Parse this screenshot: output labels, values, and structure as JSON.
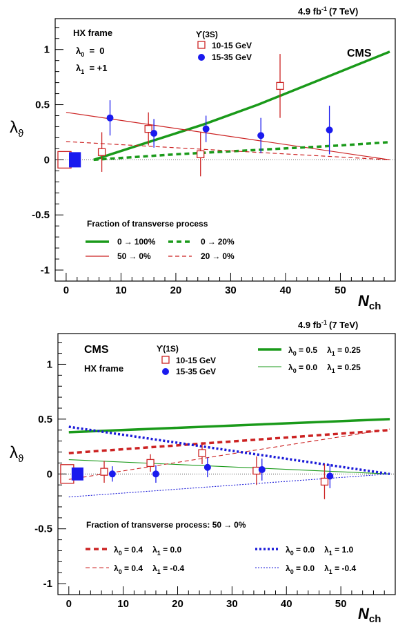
{
  "chart_data": [
    {
      "type": "scatter",
      "header": {
        "lumi": "4.9 fb",
        "lumi_sup": "-1",
        "energy": "(7 TeV)"
      },
      "experiment": "CMS",
      "frame_label": "HX frame",
      "params": [
        {
          "sym": "λ",
          "sub": "0",
          "text": "  =  0"
        },
        {
          "sym": "λ",
          "sub": "1",
          "text": "  = +1"
        }
      ],
      "state_label": "ϒ(3S)",
      "xlabel": "N",
      "xlabel_sub": "ch",
      "ylabel": "λ",
      "ylabel_sub": "ϑ",
      "xlim": [
        -2,
        60
      ],
      "ylim": [
        -1.1,
        1.28
      ],
      "xticks": [
        0,
        10,
        20,
        30,
        40,
        50
      ],
      "yticks": [
        -1,
        -0.5,
        0,
        0.5,
        1
      ],
      "ytick_labels": [
        "-1",
        "-0.5",
        "0",
        "0.5",
        "1"
      ],
      "series": [
        {
          "name": "10-15 GeV",
          "marker": "open-square",
          "color": "#cc2222",
          "x": [
            6.5,
            15,
            24.5,
            39
          ],
          "y": [
            0.07,
            0.28,
            0.05,
            0.67
          ],
          "yerr": [
            0.18,
            0.15,
            0.2,
            0.29
          ],
          "xerr": [
            0,
            0,
            0,
            0
          ]
        },
        {
          "name": "15-35 GeV",
          "marker": "filled-circle",
          "color": "#1a1aee",
          "x": [
            8,
            16,
            25.5,
            35.5,
            48
          ],
          "y": [
            0.38,
            0.24,
            0.28,
            0.22,
            0.27
          ],
          "yerr": [
            0.16,
            0.13,
            0.12,
            0.16,
            0.22
          ],
          "xerr": [
            0,
            0,
            0,
            0,
            0
          ]
        }
      ],
      "ref_boxes": [
        {
          "x": -0.3,
          "y": 0,
          "half_w": 1.2,
          "half_h": 0.075,
          "style": "open",
          "color": "#cc2222"
        },
        {
          "x": 1.6,
          "y": 0,
          "half_w": 1.0,
          "half_h": 0.065,
          "style": "filled",
          "color": "#1a1aee"
        }
      ],
      "curves": [
        {
          "label": "0",
          "label_to": "100%",
          "color": "#1a9a1a",
          "width": 3.5,
          "dash": "",
          "x": [
            5,
            15,
            25,
            35,
            45,
            59
          ],
          "y": [
            0,
            0.16,
            0.32,
            0.5,
            0.7,
            0.98
          ]
        },
        {
          "label": "50",
          "label_to": "0%",
          "color": "#cc2222",
          "width": 1.2,
          "dash": "",
          "x": [
            0,
            59
          ],
          "y": [
            0.43,
            0
          ]
        },
        {
          "label": "0",
          "label_to": "20%",
          "color": "#1a9a1a",
          "width": 3.5,
          "dash": "7,5",
          "x": [
            5,
            20,
            35,
            50,
            59
          ],
          "y": [
            0,
            0.05,
            0.09,
            0.13,
            0.16
          ]
        },
        {
          "label": "20",
          "label_to": "0%",
          "color": "#cc2222",
          "width": 1.2,
          "dash": "6,4",
          "x": [
            0,
            59
          ],
          "y": [
            0.165,
            0
          ]
        }
      ],
      "legend_title": "Fraction of transverse process",
      "legend_arrow": "→"
    },
    {
      "type": "scatter",
      "header": {
        "lumi": "4.9 fb",
        "lumi_sup": "-1",
        "energy": "(7 TeV)"
      },
      "experiment": "CMS",
      "frame_label": "HX frame",
      "state_label": "ϒ(1S)",
      "xlabel": "N",
      "xlabel_sub": "ch",
      "ylabel": "λ",
      "ylabel_sub": "ϑ",
      "xlim": [
        -2,
        60
      ],
      "ylim": [
        -1.1,
        1.28
      ],
      "xticks": [
        0,
        10,
        20,
        30,
        40,
        50
      ],
      "yticks": [
        -1,
        -0.5,
        0,
        0.5,
        1
      ],
      "ytick_labels": [
        "-1",
        "-0.5",
        "0",
        "0.5",
        "1"
      ],
      "series": [
        {
          "name": "10-15 GeV",
          "marker": "open-square",
          "color": "#cc2222",
          "x": [
            6.5,
            15,
            24.5,
            34.5,
            47
          ],
          "y": [
            0.02,
            0.1,
            0.19,
            0.03,
            -0.07
          ],
          "yerr": [
            0.1,
            0.08,
            0.1,
            0.13,
            0.16
          ],
          "xerr": [
            0,
            0,
            0,
            0,
            0
          ]
        },
        {
          "name": "15-35 GeV",
          "marker": "filled-circle",
          "color": "#1a1aee",
          "x": [
            8,
            16,
            25.5,
            35.5,
            48
          ],
          "y": [
            0.0,
            0.0,
            0.06,
            0.04,
            -0.02
          ],
          "yerr": [
            0.07,
            0.08,
            0.09,
            0.1,
            0.11
          ],
          "xerr": [
            0,
            0,
            0,
            0,
            0
          ]
        }
      ],
      "ref_boxes": [
        {
          "x": -0.3,
          "y": 0,
          "half_w": 1.2,
          "half_h": 0.085,
          "style": "open",
          "color": "#cc2222"
        },
        {
          "x": 1.6,
          "y": 0,
          "half_w": 1.0,
          "half_h": 0.055,
          "style": "filled",
          "color": "#1a1aee"
        }
      ],
      "curves": [
        {
          "p0": "0.5",
          "p1": "0.25",
          "color": "#1a9a1a",
          "width": 3.5,
          "dash": "",
          "x": [
            0,
            59
          ],
          "y": [
            0.38,
            0.5
          ]
        },
        {
          "p0": "0.0",
          "p1": "0.25",
          "color": "#1a9a1a",
          "width": 1.1,
          "dash": "",
          "x": [
            0,
            59
          ],
          "y": [
            0.13,
            0
          ]
        },
        {
          "p0": "0.4",
          "p1": "0.0",
          "color": "#cc2222",
          "width": 3.5,
          "dash": "7,5",
          "x": [
            0,
            59
          ],
          "y": [
            0.19,
            0.4
          ]
        },
        {
          "p0": "0.4",
          "p1": "-0.4",
          "color": "#cc2222",
          "width": 1.1,
          "dash": "6,4",
          "x": [
            0,
            59
          ],
          "y": [
            -0.05,
            0.41
          ]
        },
        {
          "p0": "0.0",
          "p1": "1.0",
          "color": "#1a1ad8",
          "width": 3.5,
          "dash": "3,3",
          "x": [
            0,
            59
          ],
          "y": [
            0.43,
            0
          ]
        },
        {
          "p0": "0.0",
          "p1": "-0.4",
          "color": "#1a1ad8",
          "width": 1.1,
          "dash": "2,2",
          "x": [
            0,
            59
          ],
          "y": [
            -0.21,
            0
          ]
        }
      ],
      "legend_title": "Fraction of transverse process: 50",
      "legend_title_to": "0%",
      "legend_arrow": "→"
    }
  ]
}
